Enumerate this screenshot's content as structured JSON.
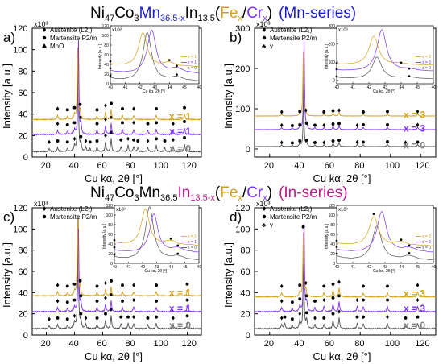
{
  "titles": {
    "mn_series": {
      "base": "Ni",
      "ni_sub": "47",
      "co": "Co",
      "co_sub": "3",
      "mn": "Mn",
      "mn_sub": "36.5-x",
      "in": "In",
      "in_sub": "13.5",
      "open": "(",
      "fe": "Fe",
      "fe_sub": "x",
      "slash": "/",
      "cr": "Cr",
      "cr_sub": "x",
      "close": ")",
      "series": "(Mn-series)"
    },
    "in_series": {
      "base": "Ni",
      "ni_sub": "47",
      "co": "Co",
      "co_sub": "3",
      "mn": "Mn",
      "mn_sub": "36.5",
      "in": "In",
      "in_sub": "13.5-x",
      "open": "(",
      "fe": "Fe",
      "fe_sub": "x",
      "slash": "/",
      "cr": "Cr",
      "cr_sub": "x",
      "close": ")",
      "series": "(In-series)"
    }
  },
  "colors": {
    "black": "#000000",
    "gray": "#505050",
    "purple": "#7b2ff7",
    "gold": "#d4a017",
    "blue_title": "#1a1ad0",
    "magenta_title": "#c2188c",
    "series_gray": "#808080"
  },
  "chart_data": [
    {
      "panel": "a)",
      "type": "line",
      "xlabel": "Cu kα, 2θ [°]",
      "ylabel": "Intensity [a.u.]",
      "multiplier": "x10³",
      "xlim": [
        10,
        130
      ],
      "ylim": [
        0,
        120
      ],
      "xticks": [
        20,
        40,
        60,
        80,
        100,
        120
      ],
      "yticks": [
        0,
        20,
        40,
        60,
        80,
        100,
        120
      ],
      "legend": [
        {
          "symbol": "diamond",
          "label": "Austenite (L2₁)"
        },
        {
          "symbol": "circle",
          "label": "Martensite P2/m"
        },
        {
          "symbol": "triangle",
          "label": "MnO"
        }
      ],
      "series": [
        {
          "name": "x = 0",
          "color": "#505050",
          "baseline": 5,
          "peaks": [
            [
              22,
              3
            ],
            [
              28,
              4
            ],
            [
              35,
              3
            ],
            [
              40,
              6
            ],
            [
              42.5,
              100
            ],
            [
              44.5,
              8
            ],
            [
              48,
              4
            ],
            [
              51,
              3
            ],
            [
              56,
              4
            ],
            [
              62,
              9
            ],
            [
              66,
              12
            ],
            [
              73,
              5
            ],
            [
              78,
              6
            ],
            [
              82,
              5
            ],
            [
              85,
              4
            ],
            [
              92,
              4
            ],
            [
              98,
              6
            ],
            [
              104,
              4
            ],
            [
              110,
              5
            ],
            [
              118,
              7
            ]
          ]
        },
        {
          "name": "x = 1",
          "color": "#7b2ff7",
          "baseline": 21,
          "peaks": [
            [
              28,
              4
            ],
            [
              35,
              3
            ],
            [
              40,
              5
            ],
            [
              42.8,
              90
            ],
            [
              44.5,
              10
            ],
            [
              56,
              4
            ],
            [
              62,
              8
            ],
            [
              66,
              10
            ],
            [
              74,
              5
            ],
            [
              82,
              5
            ],
            [
              92,
              4
            ],
            [
              98,
              5
            ],
            [
              110,
              4
            ],
            [
              118,
              6
            ]
          ]
        },
        {
          "name": "x = 1",
          "color": "#d4a017",
          "baseline": 35,
          "peaks": [
            [
              28,
              4
            ],
            [
              35,
              3
            ],
            [
              40,
              5
            ],
            [
              42.2,
              70
            ],
            [
              44,
              8
            ],
            [
              56,
              3
            ],
            [
              62,
              7
            ],
            [
              66,
              9
            ],
            [
              74,
              4
            ],
            [
              82,
              4
            ],
            [
              98,
              4
            ],
            [
              118,
              5
            ]
          ]
        }
      ],
      "inset": {
        "xlabel": "Cu kα, 2θ [°]",
        "ylabel": "Intensity [a.u.]",
        "multiplier": "x10³",
        "xlim": [
          40,
          46
        ],
        "ylim": [
          0,
          120
        ],
        "xticks": [
          40,
          41,
          42,
          43,
          44,
          45,
          46
        ],
        "yticks": [
          0,
          20,
          40,
          60,
          80,
          100,
          120
        ],
        "legend": [
          "x = 1",
          "x = 1",
          "x = 0"
        ]
      }
    },
    {
      "panel": "b)",
      "type": "line",
      "xlabel": "Cu kα, 2θ [°]",
      "ylabel": "Intensity [a.u.]",
      "multiplier": "x10³",
      "xlim": [
        10,
        130
      ],
      "ylim": [
        -20,
        300
      ],
      "xticks": [
        20,
        40,
        60,
        80,
        100,
        120
      ],
      "yticks": [
        0,
        100,
        200,
        300
      ],
      "legend": [
        {
          "symbol": "diamond",
          "label": "Austenite (L2₁)"
        },
        {
          "symbol": "circle",
          "label": "Martensite P2/m"
        },
        {
          "symbol": "club",
          "label": "γ"
        }
      ],
      "series": [
        {
          "name": "x = 0",
          "color": "#505050",
          "baseline": 6,
          "peaks": [
            [
              28,
              4
            ],
            [
              35,
              3
            ],
            [
              40,
              8
            ],
            [
              42.5,
              120
            ],
            [
              44.5,
              10
            ],
            [
              50,
              4
            ],
            [
              56,
              4
            ],
            [
              62,
              8
            ],
            [
              66,
              10
            ],
            [
              78,
              5
            ],
            [
              82,
              5
            ],
            [
              98,
              6
            ],
            [
              110,
              4
            ],
            [
              118,
              5
            ]
          ]
        },
        {
          "name": "x = 3",
          "color": "#7b2ff7",
          "baseline": 48,
          "peaks": [
            [
              28,
              5
            ],
            [
              35,
              4
            ],
            [
              40,
              6
            ],
            [
              42.8,
              230
            ],
            [
              44.5,
              10
            ],
            [
              50,
              5
            ],
            [
              56,
              5
            ],
            [
              62,
              8
            ],
            [
              66,
              9
            ],
            [
              78,
              5
            ],
            [
              82,
              6
            ],
            [
              98,
              6
            ],
            [
              118,
              6
            ]
          ]
        },
        {
          "name": "x = 3",
          "color": "#d4a017",
          "baseline": 82,
          "peaks": [
            [
              28,
              4
            ],
            [
              40,
              5
            ],
            [
              42.3,
              160
            ],
            [
              44,
              8
            ],
            [
              56,
              4
            ],
            [
              62,
              7
            ],
            [
              66,
              8
            ],
            [
              82,
              4
            ],
            [
              98,
              5
            ],
            [
              118,
              5
            ]
          ]
        }
      ],
      "inset": {
        "xlabel": "Cu kα, 2θ [°]",
        "ylabel": "Intensity [a.u.]",
        "multiplier": "x10³",
        "xlim": [
          40,
          46
        ],
        "ylim": [
          -20,
          300
        ],
        "xticks": [
          40,
          41,
          42,
          43,
          44,
          45,
          46
        ],
        "yticks": [
          0,
          100,
          200,
          300
        ],
        "legend": [
          "x = 3",
          "x = 3",
          "x = 0"
        ]
      }
    },
    {
      "panel": "c)",
      "type": "line",
      "xlabel": "Cu kα, 2θ [°]",
      "ylabel": "Intensity [a.u.]",
      "multiplier": "x10³",
      "xlim": [
        10,
        130
      ],
      "ylim": [
        0,
        120
      ],
      "xticks": [
        20,
        40,
        60,
        80,
        100,
        120
      ],
      "yticks": [
        0,
        20,
        40,
        60,
        80,
        100,
        120
      ],
      "legend": [
        {
          "symbol": "diamond",
          "label": "Austenite (L2₁)"
        },
        {
          "symbol": "circle",
          "label": "Martensite P2/m"
        }
      ],
      "series": [
        {
          "name": "x = 0",
          "color": "#505050",
          "baseline": 6,
          "peaks": [
            [
              22,
              3
            ],
            [
              28,
              4
            ],
            [
              35,
              3
            ],
            [
              40,
              6
            ],
            [
              42.5,
              110
            ],
            [
              44.5,
              8
            ],
            [
              48,
              4
            ],
            [
              56,
              4
            ],
            [
              62,
              8
            ],
            [
              66,
              12
            ],
            [
              73,
              5
            ],
            [
              78,
              5
            ],
            [
              82,
              5
            ],
            [
              92,
              4
            ],
            [
              98,
              5
            ],
            [
              110,
              4
            ],
            [
              120,
              6
            ]
          ]
        },
        {
          "name": "x = 1",
          "color": "#7b2ff7",
          "baseline": 22,
          "peaks": [
            [
              28,
              4
            ],
            [
              35,
              3
            ],
            [
              40,
              5
            ],
            [
              42.8,
              80
            ],
            [
              44.5,
              9
            ],
            [
              56,
              4
            ],
            [
              62,
              7
            ],
            [
              66,
              10
            ],
            [
              74,
              4
            ],
            [
              82,
              5
            ],
            [
              98,
              4
            ],
            [
              120,
              5
            ]
          ]
        },
        {
          "name": "x = 1",
          "color": "#d4a017",
          "baseline": 37,
          "peaks": [
            [
              28,
              4
            ],
            [
              35,
              3
            ],
            [
              40,
              5
            ],
            [
              42.2,
              75
            ],
            [
              44,
              8
            ],
            [
              56,
              3
            ],
            [
              62,
              6
            ],
            [
              66,
              8
            ],
            [
              74,
              4
            ],
            [
              82,
              4
            ],
            [
              98,
              4
            ],
            [
              120,
              5
            ]
          ]
        }
      ],
      "inset": {
        "xlabel": "Cu kα, 2θ [°]",
        "ylabel": "Intensity [a.u.]",
        "multiplier": "x10³",
        "xlim": [
          40,
          46
        ],
        "ylim": [
          0,
          120
        ],
        "xticks": [
          40,
          41,
          42,
          43,
          44,
          45,
          46
        ],
        "yticks": [
          0,
          20,
          40,
          60,
          80,
          100,
          120
        ],
        "legend": [
          "x = 1",
          "x = 1",
          "x = 0"
        ]
      }
    },
    {
      "panel": "d)",
      "type": "line",
      "xlabel": "Cu kα, 2θ [°]",
      "ylabel": "Intensity [a.u.]",
      "multiplier": "x10³",
      "xlim": [
        10,
        130
      ],
      "ylim": [
        0,
        120
      ],
      "xticks": [
        20,
        40,
        60,
        80,
        100,
        120
      ],
      "yticks": [
        0,
        20,
        40,
        60,
        80,
        100,
        120
      ],
      "legend": [
        {
          "symbol": "diamond",
          "label": "Austenite (L2₁)"
        },
        {
          "symbol": "circle",
          "label": "Martensite P2/m"
        },
        {
          "symbol": "club",
          "label": "γ"
        }
      ],
      "series": [
        {
          "name": "x = 0",
          "color": "#505050",
          "baseline": 6,
          "peaks": [
            [
              28,
              4
            ],
            [
              30,
              5
            ],
            [
              35,
              3
            ],
            [
              40,
              8
            ],
            [
              42.5,
              70
            ],
            [
              44.5,
              9
            ],
            [
              50,
              4
            ],
            [
              56,
              4
            ],
            [
              62,
              8
            ],
            [
              66,
              10
            ],
            [
              78,
              5
            ],
            [
              82,
              5
            ],
            [
              98,
              5
            ],
            [
              110,
              4
            ],
            [
              118,
              5
            ]
          ]
        },
        {
          "name": "x = 3",
          "color": "#7b2ff7",
          "baseline": 22,
          "peaks": [
            [
              28,
              4
            ],
            [
              35,
              3
            ],
            [
              40,
              6
            ],
            [
              42.8,
              85
            ],
            [
              44.5,
              9
            ],
            [
              50,
              4
            ],
            [
              56,
              5
            ],
            [
              62,
              7
            ],
            [
              66,
              9
            ],
            [
              78,
              5
            ],
            [
              82,
              5
            ],
            [
              98,
              5
            ],
            [
              118,
              5
            ]
          ]
        },
        {
          "name": "x = 3",
          "color": "#d4a017",
          "baseline": 36,
          "peaks": [
            [
              28,
              4
            ],
            [
              40,
              5
            ],
            [
              42.3,
              60
            ],
            [
              44,
              7
            ],
            [
              56,
              4
            ],
            [
              62,
              6
            ],
            [
              66,
              8
            ],
            [
              82,
              4
            ],
            [
              98,
              4
            ],
            [
              118,
              5
            ]
          ]
        }
      ],
      "inset": {
        "xlabel": "Cu kα, 2θ [°]",
        "ylabel": "Intensity [a.u.]",
        "multiplier": "x10³",
        "xlim": [
          40,
          46
        ],
        "ylim": [
          0,
          120
        ],
        "xticks": [
          40,
          41,
          42,
          43,
          44,
          45,
          46
        ],
        "yticks": [
          0,
          20,
          40,
          60,
          80,
          100,
          120
        ],
        "legend": [
          "x = 3",
          "x = 3",
          "x = 0"
        ]
      }
    }
  ]
}
